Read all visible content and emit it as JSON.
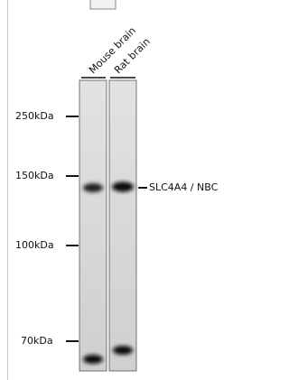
{
  "lanes": [
    "Mouse brain",
    "Rat brain"
  ],
  "markers": [
    "250kDa",
    "150kDa",
    "100kDa",
    "70kDa"
  ],
  "band_label": "SLC4A4 / NBC"
}
